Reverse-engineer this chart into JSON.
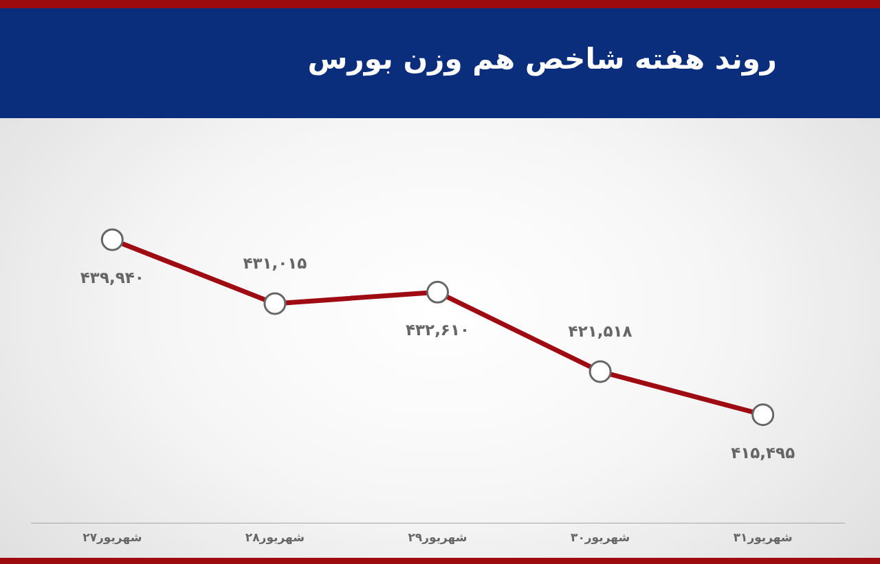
{
  "chart_data": {
    "type": "line",
    "title": "روند هفته شاخص هم وزن بورس",
    "categories": [
      "۲۷شهریور",
      "۲۸شهریور",
      "۲۹شهریور",
      "۳۰شهریور",
      "۳۱شهریور"
    ],
    "series": [
      {
        "color": "#9e0b12",
        "values": [
          439940,
          431015,
          432610,
          421518,
          415495
        ],
        "value_labels": [
          "۴۳۹,۹۴۰",
          "۴۳۱,۰۱۵",
          "۴۳۲,۶۱۰",
          "۴۲۱,۵۱۸",
          "۴۱۵,۴۹۵"
        ]
      }
    ],
    "marker": "circle",
    "line_style": "solid"
  }
}
